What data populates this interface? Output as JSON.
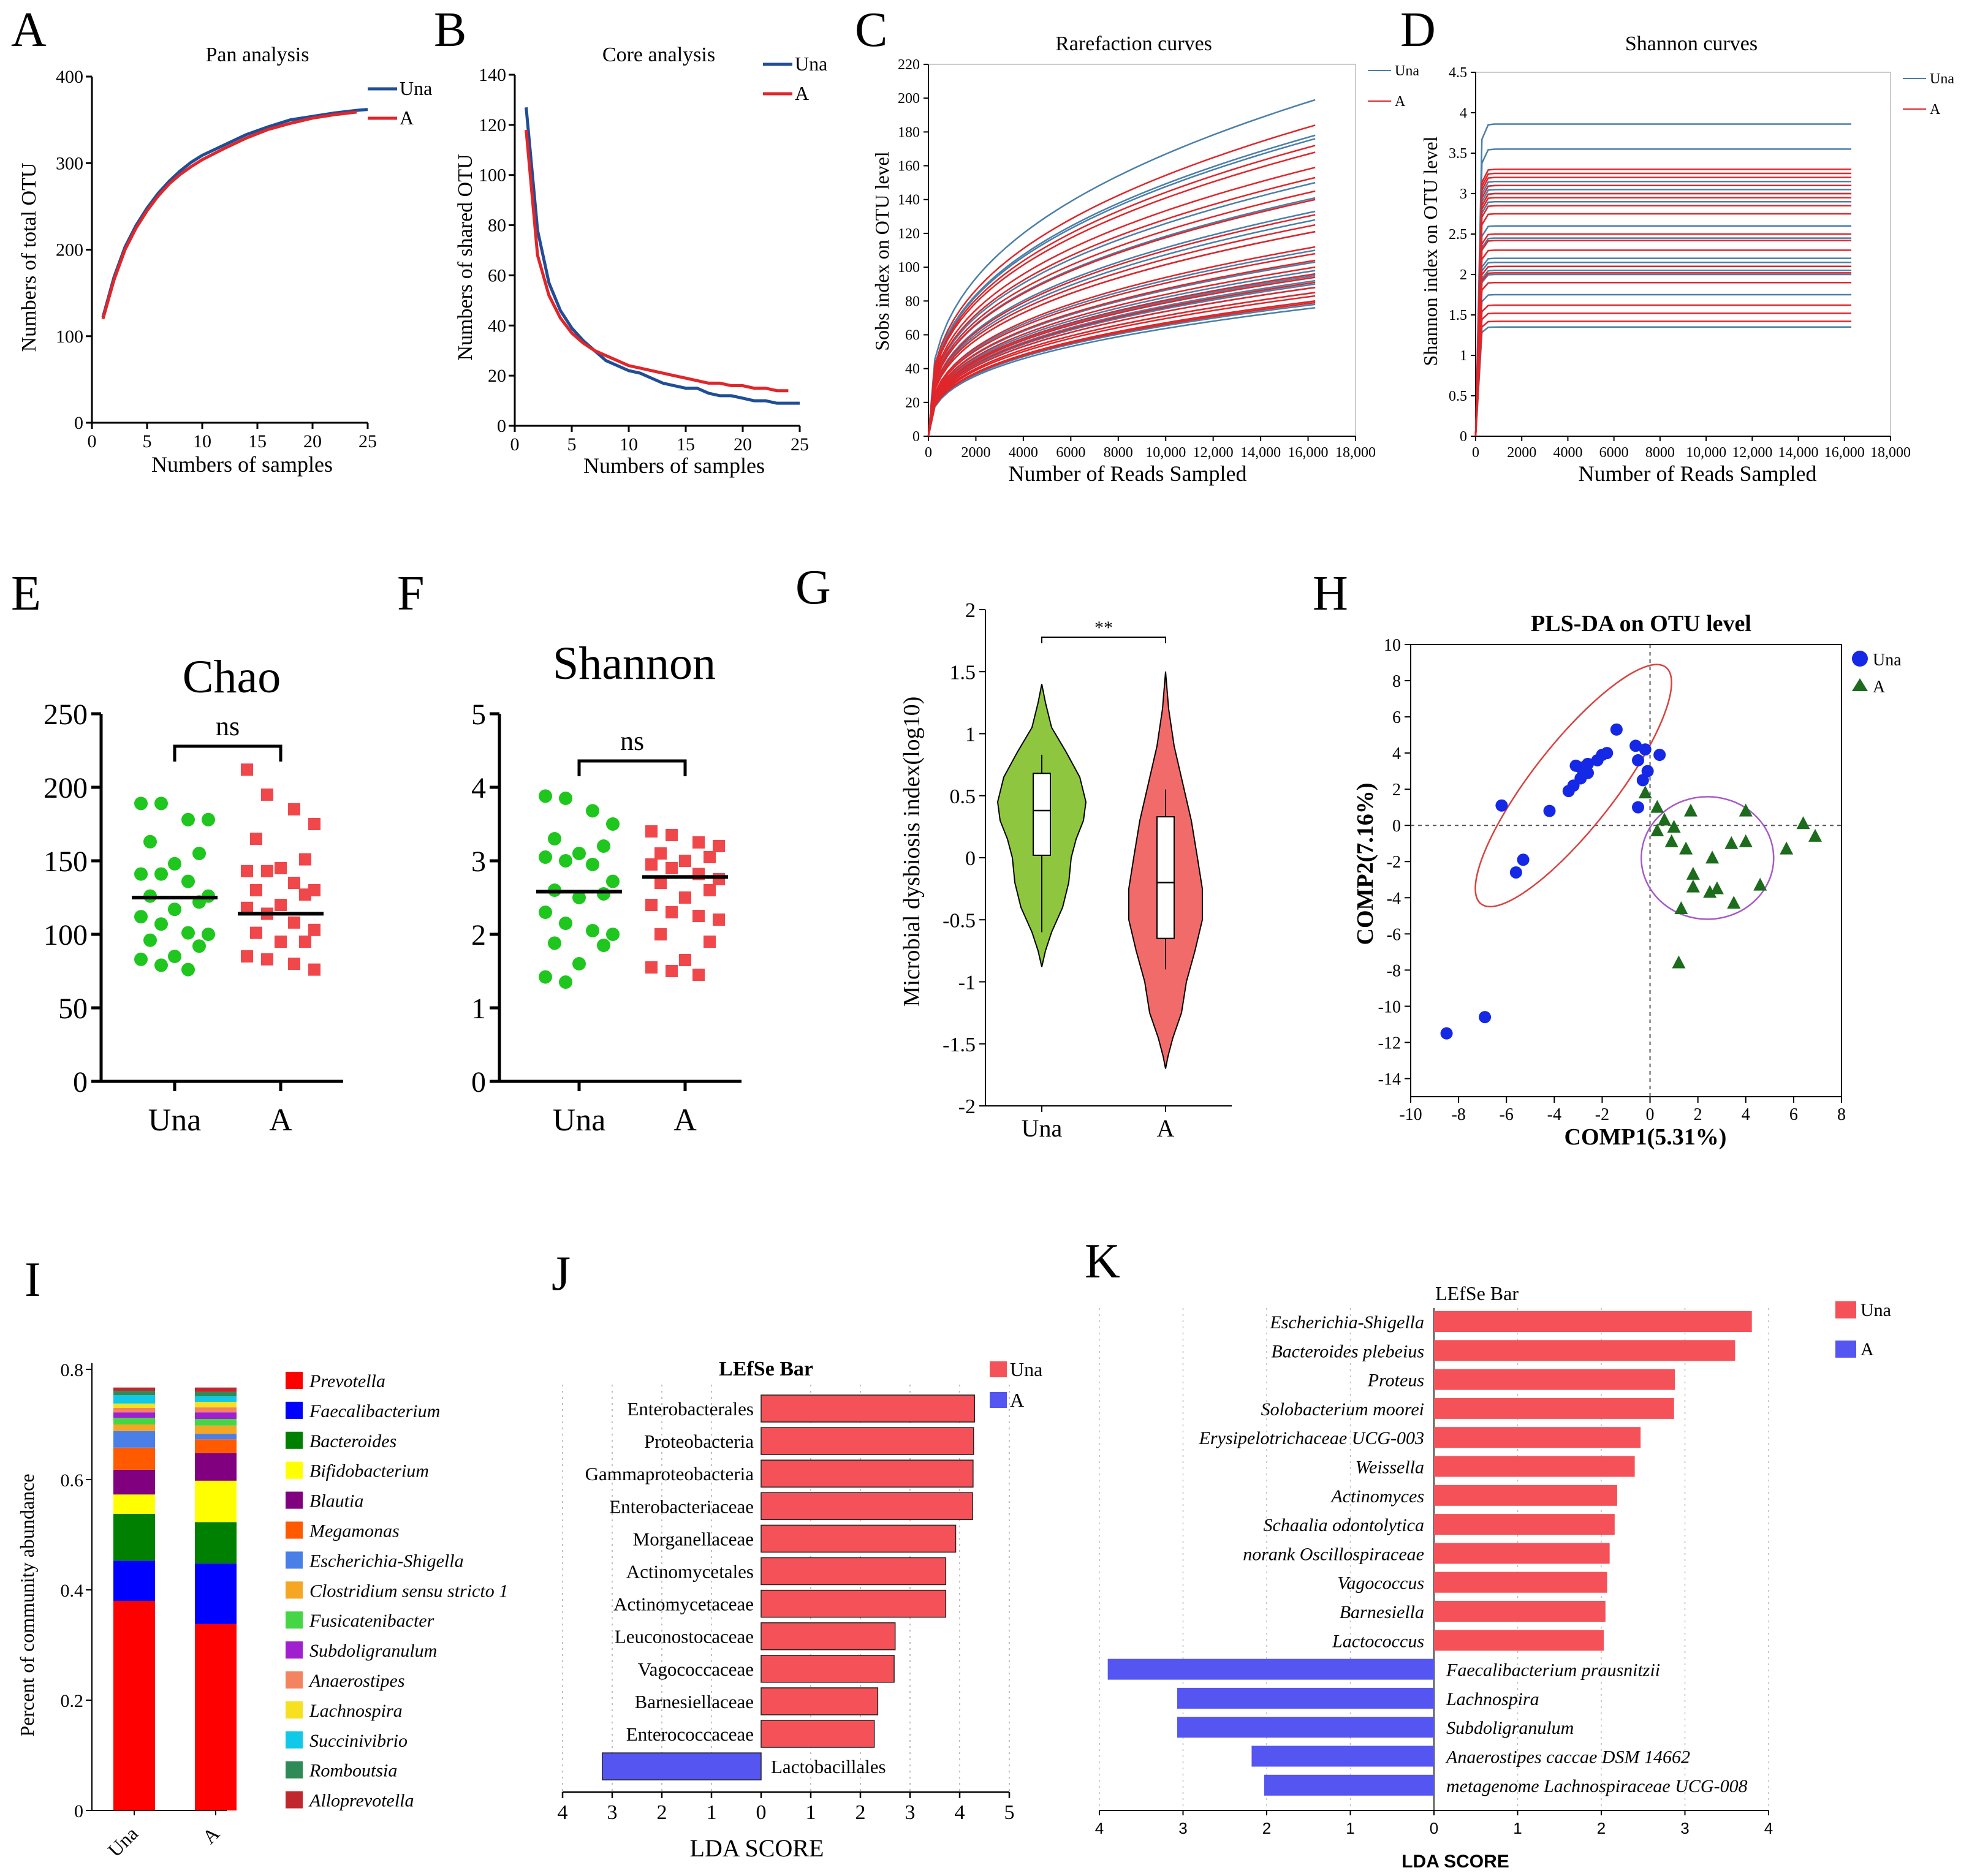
{
  "colors": {
    "una_dark": "#1f4e96",
    "una_light": "#4a7fa8",
    "a_red": "#e0262a",
    "green": "#1ec61e",
    "red_sq": "#f0474b",
    "bar_red": "#f45258",
    "bar_blue": "#5555f2",
    "violin_green": "#8ec63f",
    "violin_red": "#f26b6b",
    "plsda_blue": "#1428e6",
    "plsda_green": "#1d6b1d"
  },
  "chart_data": [
    {
      "panel": "A",
      "type": "line",
      "title": "Pan analysis",
      "xlabel": "Numbers of samples",
      "ylabel": "Numbers of total OTU",
      "xlim": [
        0,
        25
      ],
      "ylim": [
        0,
        400
      ],
      "xticks": [
        "0",
        "5",
        "10",
        "15",
        "20",
        "25"
      ],
      "yticks": [
        "0",
        "100",
        "200",
        "300",
        "400"
      ],
      "legend": [
        "Una",
        "A"
      ],
      "series": [
        {
          "name": "Una",
          "x": [
            1,
            2,
            3,
            4,
            5,
            6,
            7,
            8,
            9,
            10,
            12,
            14,
            16,
            18,
            20,
            22,
            24,
            25
          ],
          "y": [
            122,
            168,
            203,
            228,
            248,
            265,
            279,
            291,
            301,
            309,
            321,
            333,
            342,
            350,
            354,
            358,
            361,
            362
          ]
        },
        {
          "name": "A",
          "x": [
            1,
            2,
            3,
            4,
            5,
            6,
            7,
            8,
            9,
            10,
            12,
            14,
            16,
            18,
            20,
            22,
            24
          ],
          "y": [
            120,
            165,
            200,
            225,
            245,
            262,
            276,
            287,
            296,
            304,
            317,
            329,
            339,
            346,
            352,
            356,
            359
          ]
        }
      ]
    },
    {
      "panel": "B",
      "type": "line",
      "title": "Core analysis",
      "xlabel": "Numbers of samples",
      "ylabel": "Numbers of shared OTU",
      "xlim": [
        0,
        25
      ],
      "ylim": [
        0,
        140
      ],
      "xticks": [
        "0",
        "5",
        "10",
        "15",
        "20",
        "25"
      ],
      "yticks": [
        "0",
        "20",
        "40",
        "60",
        "80",
        "100",
        "120",
        "140"
      ],
      "legend": [
        "Una",
        "A"
      ],
      "series": [
        {
          "name": "Una",
          "x": [
            1,
            2,
            3,
            4,
            5,
            6,
            7,
            8,
            9,
            10,
            11,
            12,
            13,
            14,
            15,
            16,
            17,
            18,
            19,
            20,
            21,
            22,
            23,
            24,
            25
          ],
          "y": [
            127,
            78,
            57,
            46,
            39,
            34,
            30,
            26,
            24,
            22,
            21,
            19,
            17,
            16,
            15,
            15,
            13,
            12,
            12,
            11,
            10,
            10,
            9,
            9,
            9
          ]
        },
        {
          "name": "A",
          "x": [
            1,
            2,
            3,
            4,
            5,
            6,
            7,
            8,
            9,
            10,
            11,
            12,
            13,
            14,
            15,
            16,
            17,
            18,
            19,
            20,
            21,
            22,
            23,
            24
          ],
          "y": [
            118,
            68,
            52,
            43,
            37,
            33,
            30,
            28,
            26,
            24,
            23,
            22,
            21,
            20,
            19,
            18,
            17,
            17,
            16,
            16,
            15,
            15,
            14,
            14
          ]
        }
      ]
    },
    {
      "panel": "C",
      "type": "line",
      "title": "Rarefaction curves",
      "xlabel": "Number of Reads Sampled",
      "ylabel": "Sobs index on OTU level",
      "xlim": [
        0,
        18000
      ],
      "ylim": [
        0,
        220
      ],
      "xticks": [
        "0",
        "2000",
        "4000",
        "6000",
        "8000",
        "10,000",
        "12,000",
        "14,000",
        "16,000",
        "18,000"
      ],
      "yticks": [
        "0",
        "20",
        "40",
        "60",
        "80",
        "100",
        "120",
        "140",
        "160",
        "180",
        "200",
        "220"
      ],
      "legend": [
        "Una",
        "A"
      ],
      "curve_end_x": 16300,
      "una_final": [
        199,
        178,
        176,
        150,
        141,
        133,
        128,
        121,
        110,
        103,
        98,
        96,
        95,
        92,
        90,
        88,
        85,
        80,
        78,
        76
      ],
      "a_final": [
        184,
        172,
        168,
        159,
        153,
        145,
        140,
        131,
        125,
        121,
        112,
        108,
        104,
        100,
        96,
        94,
        91,
        88,
        85,
        83,
        80,
        79
      ]
    },
    {
      "panel": "D",
      "type": "line",
      "title": "Shannon curves",
      "xlabel": "Number of Reads Sampled",
      "ylabel": "Shannon index on OTU level",
      "xlim": [
        0,
        18000
      ],
      "ylim": [
        0,
        4.5
      ],
      "xticks": [
        "0",
        "2000",
        "4000",
        "6000",
        "8000",
        "10,000",
        "12,000",
        "14,000",
        "16,000",
        "18,000"
      ],
      "yticks": [
        "0",
        "0.5",
        "1",
        "1.5",
        "2",
        "2.5",
        "3",
        "3.5",
        "4",
        "4.5"
      ],
      "legend": [
        "Una",
        "A"
      ],
      "curve_end_x": 16300,
      "una_final": [
        3.86,
        3.55,
        3.15,
        3.1,
        3.05,
        3.0,
        2.9,
        2.6,
        2.45,
        2.2,
        2.15,
        2.05,
        2.0,
        1.75,
        1.35
      ],
      "a_final": [
        3.3,
        3.25,
        3.2,
        3.1,
        3.0,
        2.95,
        2.85,
        2.75,
        2.5,
        2.42,
        2.3,
        2.1,
        2.02,
        1.9,
        1.62,
        1.52,
        1.42
      ]
    },
    {
      "panel": "E",
      "type": "scatter",
      "title": "Chao",
      "significance": "ns",
      "categories": [
        "Una",
        "A"
      ],
      "ylim": [
        0,
        250
      ],
      "yticks": [
        "0",
        "50",
        "100",
        "150",
        "200",
        "250"
      ],
      "una": [
        189,
        189,
        178,
        178,
        163,
        155,
        148,
        141,
        141,
        136,
        126,
        126,
        122,
        117,
        112,
        107,
        101,
        100,
        96,
        92,
        85,
        83,
        79,
        76
      ],
      "una_mean": 125,
      "a": [
        212,
        195,
        185,
        175,
        165,
        151,
        145,
        143,
        143,
        135,
        130,
        130,
        127,
        120,
        118,
        114,
        108,
        103,
        101,
        95,
        95,
        85,
        83,
        80,
        76
      ],
      "a_mean": 114
    },
    {
      "panel": "F",
      "type": "scatter",
      "title": "Shannon",
      "significance": "ns",
      "categories": [
        "Una",
        "A"
      ],
      "ylim": [
        0,
        5
      ],
      "yticks": [
        "0",
        "1",
        "2",
        "3",
        "4",
        "5"
      ],
      "una": [
        3.88,
        3.85,
        3.68,
        3.5,
        3.3,
        3.2,
        3.1,
        3.05,
        3.0,
        2.95,
        2.72,
        2.6,
        2.55,
        2.5,
        2.3,
        2.15,
        2.05,
        2.0,
        1.88,
        1.85,
        1.6,
        1.42,
        1.35
      ],
      "una_mean": 2.58,
      "a": [
        3.4,
        3.35,
        3.25,
        3.2,
        3.1,
        3.05,
        3.0,
        2.95,
        2.9,
        2.82,
        2.75,
        2.7,
        2.6,
        2.5,
        2.4,
        2.3,
        2.25,
        2.2,
        2.0,
        1.9,
        1.65,
        1.55,
        1.5,
        1.45
      ],
      "a_mean": 2.78
    },
    {
      "panel": "G",
      "type": "violin",
      "significance": "**",
      "ylabel": "Microbial dysbiosis index(log10)",
      "categories": [
        "Una",
        "A"
      ],
      "ylim": [
        -2,
        2
      ],
      "yticks": [
        "2",
        "1.5",
        "1",
        "0.5",
        "0",
        "-0.5",
        "-1",
        "-1.5",
        "-2"
      ],
      "una": {
        "min": -0.88,
        "q1": 0.02,
        "median": 0.38,
        "q3": 0.68,
        "max": 1.4,
        "whisker_low": -0.6,
        "whisker_high": 0.83
      },
      "a": {
        "min": -1.7,
        "q1": -0.65,
        "median": -0.2,
        "q3": 0.33,
        "max": 1.5,
        "whisker_low": -0.9,
        "whisker_high": 0.55
      }
    },
    {
      "panel": "H",
      "type": "scatter",
      "title": "PLS-DA on OTU level",
      "xlabel": "COMP1(5.31%)",
      "ylabel": "COMP2(7.16%)",
      "xlim": [
        -10,
        8
      ],
      "ylim": [
        -15,
        10
      ],
      "xticks": [
        "-10",
        "-8",
        "-6",
        "-4",
        "-2",
        "0",
        "2",
        "4",
        "6",
        "8"
      ],
      "yticks": [
        "10",
        "8",
        "6",
        "4",
        "2",
        "0",
        "-2",
        "-4",
        "-6",
        "-8",
        "-10",
        "-12",
        "-14"
      ],
      "legend": [
        "Una",
        "A"
      ],
      "una": [
        [
          -1.4,
          5.3
        ],
        [
          -1.8,
          4.0
        ],
        [
          -2.0,
          3.9
        ],
        [
          -2.2,
          3.6
        ],
        [
          -2.6,
          3.4
        ],
        [
          -2.9,
          3.2
        ],
        [
          -3.1,
          3.3
        ],
        [
          -2.6,
          2.9
        ],
        [
          -2.9,
          2.6
        ],
        [
          -3.2,
          2.2
        ],
        [
          -3.4,
          1.9
        ],
        [
          -0.6,
          4.4
        ],
        [
          -0.2,
          4.2
        ],
        [
          0.4,
          3.9
        ],
        [
          -0.5,
          3.6
        ],
        [
          -0.1,
          3.0
        ],
        [
          -0.3,
          2.5
        ],
        [
          -0.5,
          1.0
        ],
        [
          -4.2,
          0.8
        ],
        [
          -6.2,
          1.1
        ],
        [
          -5.3,
          -1.9
        ],
        [
          -5.6,
          -2.6
        ],
        [
          -6.9,
          -10.6
        ],
        [
          -8.5,
          -11.5
        ]
      ],
      "a": [
        [
          -0.2,
          1.8
        ],
        [
          0.3,
          1.0
        ],
        [
          0.6,
          0.3
        ],
        [
          0.3,
          -0.3
        ],
        [
          1.0,
          -0.1
        ],
        [
          1.7,
          0.8
        ],
        [
          0.9,
          -0.9
        ],
        [
          1.5,
          -1.3
        ],
        [
          1.8,
          -2.7
        ],
        [
          2.5,
          -3.7
        ],
        [
          1.8,
          -3.4
        ],
        [
          2.6,
          -1.8
        ],
        [
          3.4,
          -1.0
        ],
        [
          4.0,
          -0.9
        ],
        [
          3.5,
          -4.3
        ],
        [
          4.6,
          -3.3
        ],
        [
          4.0,
          0.8
        ],
        [
          5.7,
          -1.3
        ],
        [
          6.4,
          0.1
        ],
        [
          6.9,
          -0.6
        ],
        [
          1.3,
          -4.6
        ],
        [
          1.2,
          -7.6
        ],
        [
          2.8,
          -3.5
        ]
      ]
    },
    {
      "panel": "I",
      "type": "bar",
      "stacked": true,
      "ylabel": "Percent of community abundance",
      "ylim": [
        0,
        0.8
      ],
      "yticks": [
        "0",
        "0.2",
        "0.4",
        "0.6",
        "0.8"
      ],
      "categories": [
        "Una",
        "A"
      ],
      "series": [
        {
          "name": "Prevotella",
          "color": "#ff0000",
          "values": [
            0.38,
            0.338
          ]
        },
        {
          "name": "Faecalibacterium",
          "color": "#0000ff",
          "values": [
            0.073,
            0.11
          ]
        },
        {
          "name": "Bacteroides",
          "color": "#008000",
          "values": [
            0.085,
            0.075
          ]
        },
        {
          "name": "Bifidobacterium",
          "color": "#ffff00",
          "values": [
            0.035,
            0.075
          ]
        },
        {
          "name": "Blautia",
          "color": "#800080",
          "values": [
            0.045,
            0.05
          ]
        },
        {
          "name": "Megamonas",
          "color": "#ff5a00",
          "values": [
            0.04,
            0.025
          ]
        },
        {
          "name": "Escherichia-Shigella",
          "color": "#4a7fe8",
          "values": [
            0.03,
            0.01
          ]
        },
        {
          "name": "Clostridium sensu stricto 1",
          "color": "#f5a623",
          "values": [
            0.012,
            0.015
          ]
        },
        {
          "name": "Fusicatenibacter",
          "color": "#45d645",
          "values": [
            0.012,
            0.012
          ]
        },
        {
          "name": "Subdoligranulum",
          "color": "#a020d0",
          "values": [
            0.01,
            0.012
          ]
        },
        {
          "name": "Anaerostipes",
          "color": "#f4845f",
          "values": [
            0.008,
            0.009
          ]
        },
        {
          "name": "Lachnospira",
          "color": "#f7e01f",
          "values": [
            0.008,
            0.01
          ]
        },
        {
          "name": "Succinivibrio",
          "color": "#10c8e8",
          "values": [
            0.015,
            0.01
          ]
        },
        {
          "name": "Romboutsia",
          "color": "#2e8b57",
          "values": [
            0.008,
            0.008
          ]
        },
        {
          "name": "Alloprevotella",
          "color": "#c0282e",
          "values": [
            0.006,
            0.008
          ]
        }
      ]
    },
    {
      "panel": "J",
      "type": "bar",
      "orientation": "horizontal",
      "title": "LEfSe Bar",
      "xlabel": "LDA SCORE",
      "xticks": [
        "4",
        "3",
        "2",
        "1",
        "0",
        "1",
        "2",
        "3",
        "4",
        "5"
      ],
      "legend": [
        "Una",
        "A"
      ],
      "bars": [
        {
          "label": "Enterobacterales",
          "group": "Una",
          "value": 4.3
        },
        {
          "label": "Proteobacteria",
          "group": "Una",
          "value": 4.28
        },
        {
          "label": "Gammaproteobacteria",
          "group": "Una",
          "value": 4.27
        },
        {
          "label": "Enterobacteriaceae",
          "group": "Una",
          "value": 4.26
        },
        {
          "label": "Morganellaceae",
          "group": "Una",
          "value": 3.92
        },
        {
          "label": "Actinomycetales",
          "group": "Una",
          "value": 3.72
        },
        {
          "label": "Actinomycetaceae",
          "group": "Una",
          "value": 3.72
        },
        {
          "label": "Leuconostocaceae",
          "group": "Una",
          "value": 2.7
        },
        {
          "label": "Vagococcaceae",
          "group": "Una",
          "value": 2.68
        },
        {
          "label": "Barnesiellaceae",
          "group": "Una",
          "value": 2.35
        },
        {
          "label": "Enterococcaceae",
          "group": "Una",
          "value": 2.28
        },
        {
          "label": "Lactobacillales",
          "group": "A",
          "value": 3.2
        }
      ]
    },
    {
      "panel": "K",
      "type": "bar",
      "orientation": "horizontal",
      "title": "LEfSe Bar",
      "xlabel": "LDA SCORE",
      "xticks": [
        "4",
        "3",
        "2",
        "1",
        "0",
        "1",
        "2",
        "3",
        "4"
      ],
      "legend": [
        "Una",
        "A"
      ],
      "bars": [
        {
          "label": "Escherichia-Shigella",
          "group": "Una",
          "value": 3.8
        },
        {
          "label": "Bacteroides plebeius",
          "group": "Una",
          "value": 3.6
        },
        {
          "label": "Proteus",
          "group": "Una",
          "value": 2.88
        },
        {
          "label": "Solobacterium  moorei",
          "group": "Una",
          "value": 2.87
        },
        {
          "label": "Erysipelotrichaceae UCG-003",
          "group": "Una",
          "value": 2.47
        },
        {
          "label": "Weissella",
          "group": "Una",
          "value": 2.4
        },
        {
          "label": "Actinomyces",
          "group": "Una",
          "value": 2.19
        },
        {
          "label": "Schaalia  odontolytica",
          "group": "Una",
          "value": 2.16
        },
        {
          "label": "norank Oscillospiraceae",
          "group": "Una",
          "value": 2.1
        },
        {
          "label": "Vagococcus",
          "group": "Una",
          "value": 2.07
        },
        {
          "label": "Barnesiella",
          "group": "Una",
          "value": 2.05
        },
        {
          "label": "Lactococcus",
          "group": "Una",
          "value": 2.03
        },
        {
          "label": "Faecalibacterium  prausnitzii",
          "group": "A",
          "value": 3.9
        },
        {
          "label": "Lachnospira",
          "group": "A",
          "value": 3.07
        },
        {
          "label": "Subdoligranulum",
          "group": "A",
          "value": 3.07
        },
        {
          "label": "Anaerostipes caccae DSM 14662",
          "group": "A",
          "value": 2.18
        },
        {
          "label": "metagenome Lachnospiraceae UCG-008",
          "group": "A",
          "value": 2.03
        }
      ]
    }
  ],
  "panel_letters": [
    "A",
    "B",
    "C",
    "D",
    "E",
    "F",
    "G",
    "H",
    "I",
    "J",
    "K"
  ]
}
